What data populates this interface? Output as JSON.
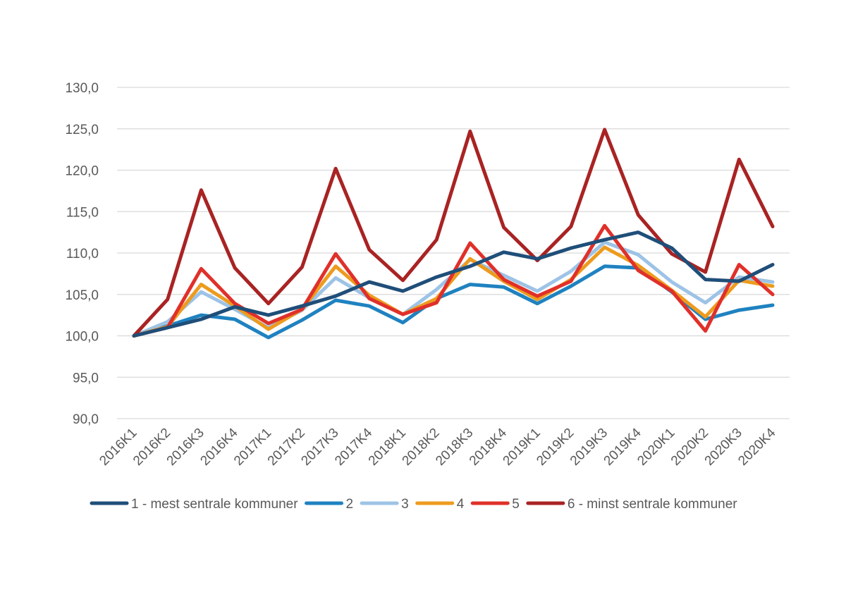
{
  "chart_data": {
    "type": "line",
    "title": "",
    "xlabel": "",
    "ylabel": "",
    "ylim": [
      90,
      130
    ],
    "yticks": [
      90,
      95,
      100,
      105,
      110,
      115,
      120,
      125,
      130
    ],
    "ytick_labels": [
      "90,0",
      "95,0",
      "100,0",
      "105,0",
      "110,0",
      "115,0",
      "120,0",
      "125,0",
      "130,0"
    ],
    "grid": true,
    "legend_position": "bottom",
    "categories": [
      "2016K1",
      "2016K2",
      "2016K3",
      "2016K4",
      "2017K1",
      "2017K2",
      "2017K3",
      "2017K4",
      "2018K1",
      "2018K2",
      "2018K3",
      "2018K4",
      "2019K1",
      "2019K2",
      "2019K3",
      "2019K4",
      "2020K1",
      "2020K2",
      "2020K3",
      "2020K4"
    ],
    "series": [
      {
        "name": "1 - mest sentrale kommuner",
        "color": "#1f4e79",
        "values": [
          100.0,
          101.0,
          102.0,
          103.5,
          102.5,
          103.6,
          104.8,
          106.5,
          105.4,
          107.1,
          108.4,
          110.1,
          109.3,
          110.6,
          111.6,
          112.5,
          110.6,
          106.8,
          106.6,
          108.6
        ]
      },
      {
        "name": "2",
        "color": "#1f82c0",
        "values": [
          100.0,
          101.2,
          102.5,
          102.0,
          99.8,
          101.9,
          104.3,
          103.6,
          101.6,
          104.5,
          106.2,
          105.9,
          103.9,
          106.0,
          108.4,
          108.2,
          105.3,
          102.0,
          103.1,
          103.7
        ]
      },
      {
        "name": "3",
        "color": "#9dc3e6",
        "values": [
          100.0,
          101.7,
          105.3,
          103.2,
          101.0,
          103.1,
          107.0,
          104.6,
          102.6,
          105.6,
          109.2,
          107.3,
          105.4,
          107.8,
          111.3,
          109.8,
          106.5,
          104.0,
          107.1,
          106.5
        ]
      },
      {
        "name": "4",
        "color": "#ed9b1e",
        "values": [
          100.0,
          101.1,
          106.2,
          103.6,
          100.8,
          103.2,
          108.4,
          104.9,
          102.6,
          104.5,
          109.3,
          106.6,
          104.4,
          106.8,
          110.7,
          108.5,
          105.5,
          102.3,
          106.7,
          106.0
        ]
      },
      {
        "name": "5",
        "color": "#e0302a",
        "values": [
          100.0,
          101.0,
          108.1,
          103.9,
          101.5,
          103.2,
          109.9,
          104.5,
          102.6,
          104.0,
          111.2,
          106.8,
          104.8,
          106.6,
          113.3,
          107.9,
          105.4,
          100.6,
          108.6,
          105.0
        ]
      },
      {
        "name": "6 - minst sentrale kommuner",
        "color": "#a92323",
        "values": [
          100.0,
          104.4,
          117.6,
          108.2,
          103.9,
          108.3,
          120.2,
          110.4,
          106.7,
          111.6,
          124.7,
          113.1,
          109.1,
          113.2,
          124.9,
          114.6,
          109.9,
          107.7,
          121.3,
          113.2
        ]
      }
    ]
  }
}
